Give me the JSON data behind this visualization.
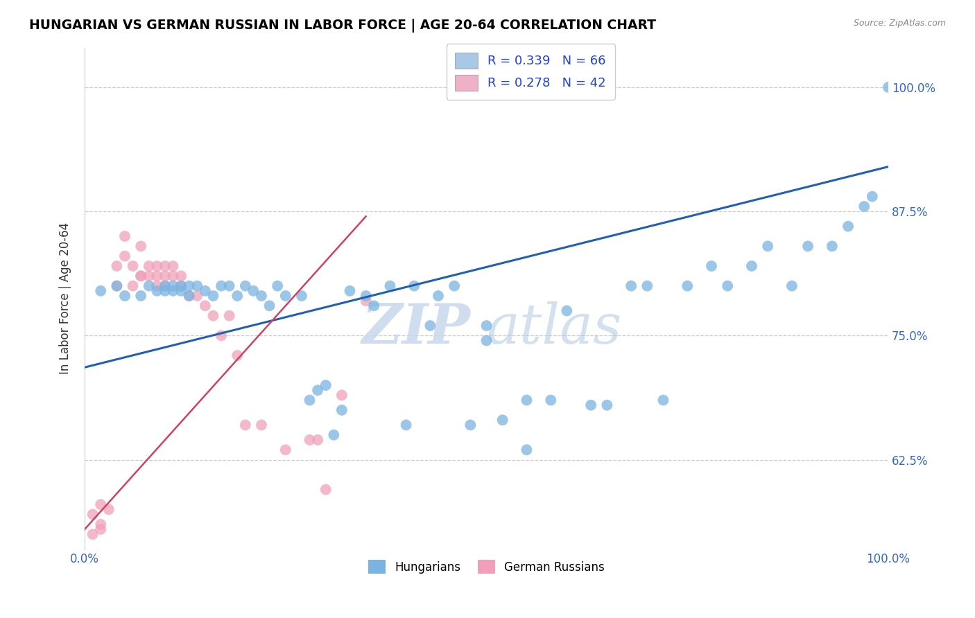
{
  "title": "HUNGARIAN VS GERMAN RUSSIAN IN LABOR FORCE | AGE 20-64 CORRELATION CHART",
  "source": "Source: ZipAtlas.com",
  "ylabel": "In Labor Force | Age 20-64",
  "x_lim": [
    0.0,
    1.0
  ],
  "y_lim": [
    0.535,
    1.04
  ],
  "y_ticks": [
    0.625,
    0.75,
    0.875,
    1.0
  ],
  "y_tick_labels": [
    "62.5%",
    "75.0%",
    "87.5%",
    "100.0%"
  ],
  "x_ticks": [
    0.0,
    1.0
  ],
  "x_tick_labels": [
    "0.0%",
    "100.0%"
  ],
  "legend_items": [
    {
      "label": "R = 0.339   N = 66",
      "color": "#a8c8e8"
    },
    {
      "label": "R = 0.278   N = 42",
      "color": "#f0b0c8"
    }
  ],
  "legend_bottom": [
    "Hungarians",
    "German Russians"
  ],
  "blue_color": "#7ab4e0",
  "pink_color": "#f0a0b8",
  "blue_line_color": "#2060b0",
  "pink_line_color": "#d04060",
  "watermark_zip": "ZIP",
  "watermark_atlas": "atlas",
  "blue_scatter_x": [
    0.02,
    0.04,
    0.05,
    0.07,
    0.08,
    0.09,
    0.1,
    0.1,
    0.11,
    0.11,
    0.12,
    0.12,
    0.13,
    0.13,
    0.14,
    0.15,
    0.16,
    0.17,
    0.18,
    0.19,
    0.2,
    0.21,
    0.22,
    0.23,
    0.24,
    0.25,
    0.27,
    0.28,
    0.29,
    0.3,
    0.31,
    0.32,
    0.33,
    0.35,
    0.36,
    0.38,
    0.4,
    0.41,
    0.43,
    0.44,
    0.46,
    0.48,
    0.5,
    0.52,
    0.55,
    0.58,
    0.6,
    0.63,
    0.65,
    0.68,
    0.7,
    0.72,
    0.75,
    0.78,
    0.8,
    0.83,
    0.85,
    0.88,
    0.9,
    0.93,
    0.95,
    0.97,
    0.98,
    1.0,
    0.5,
    0.55
  ],
  "blue_scatter_y": [
    0.795,
    0.8,
    0.79,
    0.79,
    0.8,
    0.795,
    0.8,
    0.795,
    0.8,
    0.795,
    0.8,
    0.795,
    0.8,
    0.79,
    0.8,
    0.795,
    0.79,
    0.8,
    0.8,
    0.79,
    0.8,
    0.795,
    0.79,
    0.78,
    0.8,
    0.79,
    0.79,
    0.685,
    0.695,
    0.7,
    0.65,
    0.675,
    0.795,
    0.79,
    0.78,
    0.8,
    0.66,
    0.8,
    0.76,
    0.79,
    0.8,
    0.66,
    0.76,
    0.665,
    0.685,
    0.685,
    0.775,
    0.68,
    0.68,
    0.8,
    0.8,
    0.685,
    0.8,
    0.82,
    0.8,
    0.82,
    0.84,
    0.8,
    0.84,
    0.84,
    0.86,
    0.88,
    0.89,
    1.0,
    0.745,
    0.635
  ],
  "pink_scatter_x": [
    0.01,
    0.02,
    0.02,
    0.03,
    0.04,
    0.04,
    0.05,
    0.05,
    0.06,
    0.06,
    0.07,
    0.07,
    0.07,
    0.08,
    0.08,
    0.09,
    0.09,
    0.09,
    0.1,
    0.1,
    0.1,
    0.11,
    0.11,
    0.12,
    0.12,
    0.13,
    0.14,
    0.15,
    0.16,
    0.17,
    0.18,
    0.19,
    0.2,
    0.22,
    0.25,
    0.28,
    0.29,
    0.3,
    0.32,
    0.35,
    0.01,
    0.02
  ],
  "pink_scatter_y": [
    0.57,
    0.56,
    0.58,
    0.575,
    0.8,
    0.82,
    0.83,
    0.85,
    0.8,
    0.82,
    0.81,
    0.84,
    0.81,
    0.81,
    0.82,
    0.8,
    0.81,
    0.82,
    0.8,
    0.81,
    0.82,
    0.81,
    0.82,
    0.8,
    0.81,
    0.79,
    0.79,
    0.78,
    0.77,
    0.75,
    0.77,
    0.73,
    0.66,
    0.66,
    0.635,
    0.645,
    0.645,
    0.595,
    0.69,
    0.785,
    0.55,
    0.555
  ],
  "blue_trend_x": [
    0.0,
    1.0
  ],
  "blue_trend_y": [
    0.718,
    0.92
  ],
  "pink_trend_x": [
    0.0,
    0.35
  ],
  "pink_trend_y": [
    0.555,
    0.87
  ]
}
